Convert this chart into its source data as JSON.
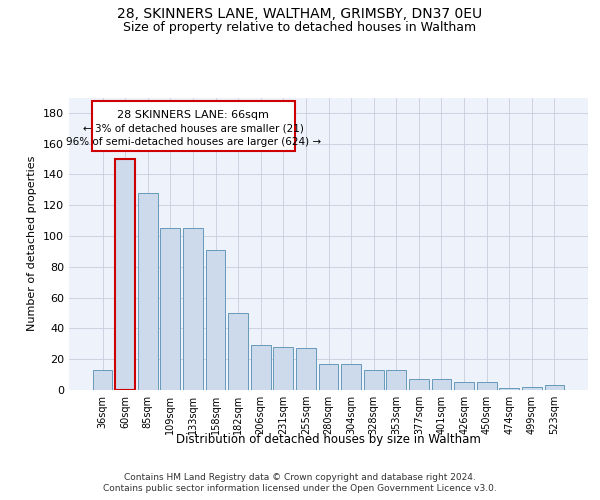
{
  "title1": "28, SKINNERS LANE, WALTHAM, GRIMSBY, DN37 0EU",
  "title2": "Size of property relative to detached houses in Waltham",
  "xlabel": "Distribution of detached houses by size in Waltham",
  "ylabel": "Number of detached properties",
  "categories": [
    "36sqm",
    "60sqm",
    "85sqm",
    "109sqm",
    "133sqm",
    "158sqm",
    "182sqm",
    "206sqm",
    "231sqm",
    "255sqm",
    "280sqm",
    "304sqm",
    "328sqm",
    "353sqm",
    "377sqm",
    "401sqm",
    "426sqm",
    "450sqm",
    "474sqm",
    "499sqm",
    "523sqm"
  ],
  "values": [
    13,
    150,
    128,
    105,
    105,
    91,
    50,
    29,
    28,
    27,
    17,
    17,
    13,
    13,
    7,
    7,
    5,
    5,
    1,
    2,
    3
  ],
  "bar_color": "#ccdaeb",
  "bar_edge_color": "#6699bb",
  "highlight_bar_index": 1,
  "highlight_edge_color": "#cc0000",
  "annotation_line1": "28 SKINNERS LANE: 66sqm",
  "annotation_line2": "← 3% of detached houses are smaller (21)",
  "annotation_line3": "96% of semi-detached houses are larger (624) →",
  "annotation_box_color": "#ffffff",
  "annotation_box_edge_color": "#cc0000",
  "ylim": [
    0,
    190
  ],
  "yticks": [
    0,
    20,
    40,
    60,
    80,
    100,
    120,
    140,
    160,
    180
  ],
  "background_color": "#eef2fb",
  "footer_line1": "Contains HM Land Registry data © Crown copyright and database right 2024.",
  "footer_line2": "Contains public sector information licensed under the Open Government Licence v3.0.",
  "grid_color": "#ccccdd"
}
